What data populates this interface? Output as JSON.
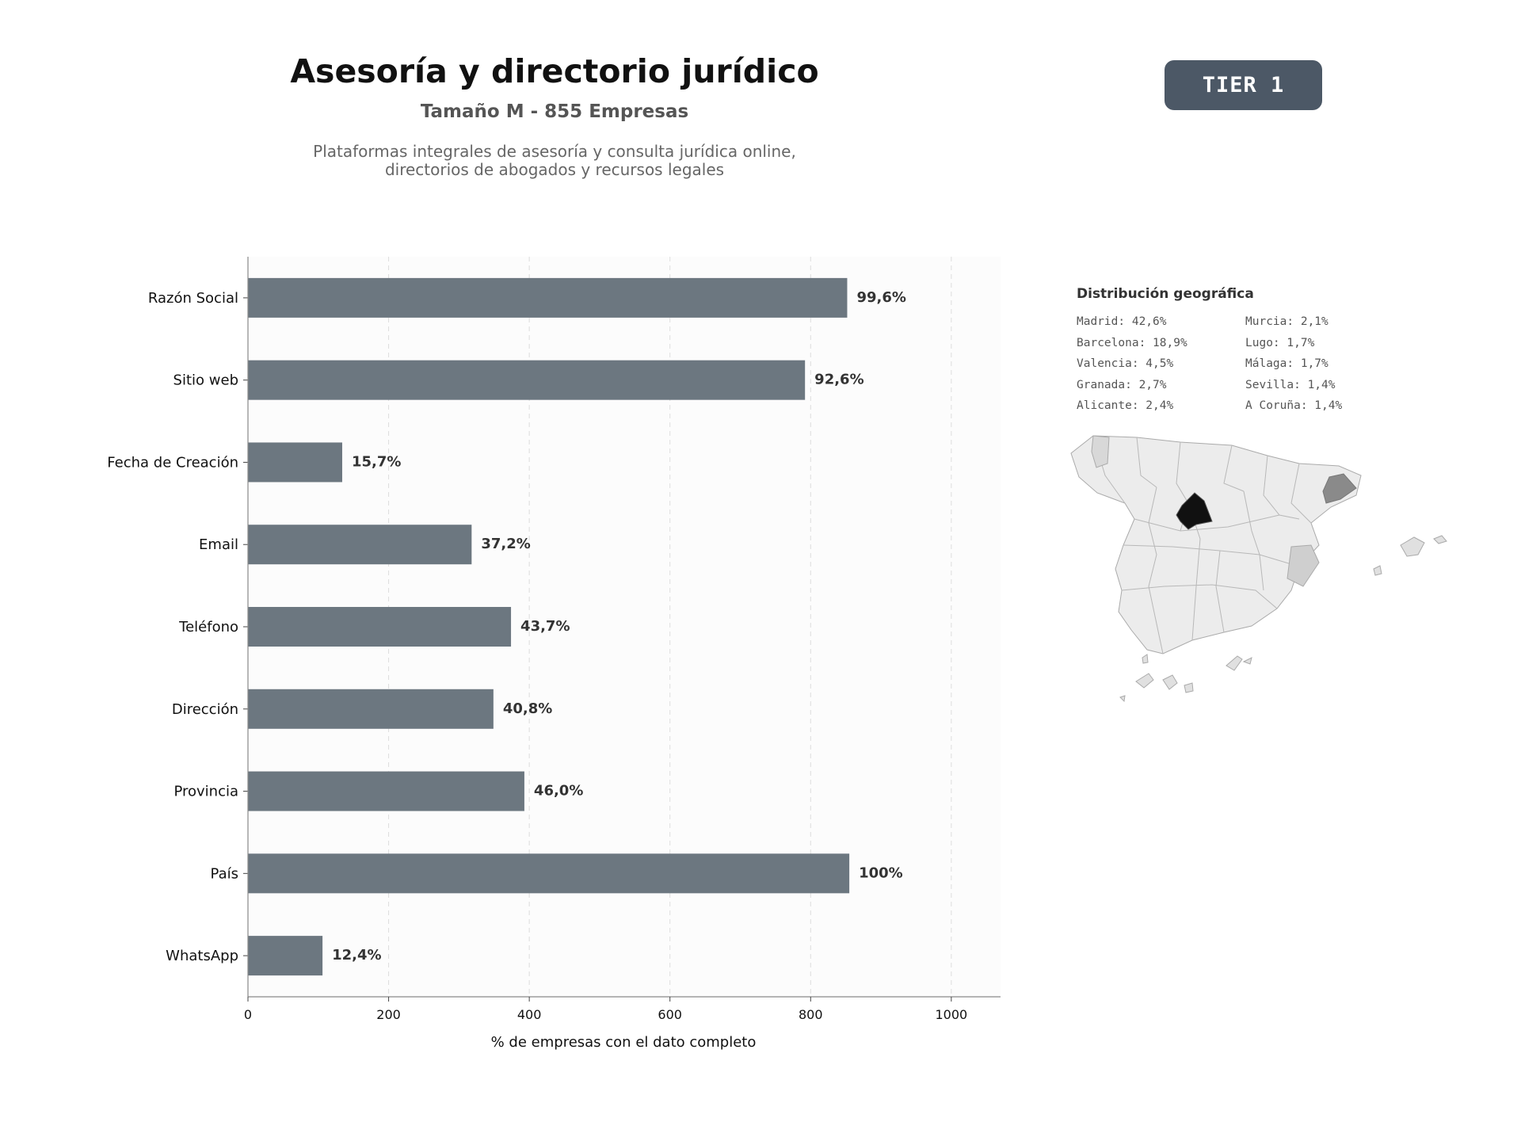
{
  "header": {
    "title": "Asesoría y directorio jurídico",
    "subtitle": "Tamaño M - 855 Empresas",
    "description": "Plataformas integrales de asesoría y consulta jurídica online,\ndirectorios de abogados y recursos legales"
  },
  "badge": {
    "label": "TIER 1"
  },
  "colors": {
    "bar": "#6c7780",
    "badge": "#4c5866",
    "plot_background": "#fcfcfc",
    "grid": "#dddddd"
  },
  "chart_data": {
    "type": "bar",
    "orientation": "horizontal",
    "categories": [
      "Razón Social",
      "Sitio web",
      "Fecha de Creación",
      "Email",
      "Teléfono",
      "Dirección",
      "Provincia",
      "País",
      "WhatsApp"
    ],
    "values": [
      852,
      792,
      134,
      318,
      374,
      349,
      393,
      855,
      106
    ],
    "data_labels": [
      "99,6%",
      "92,6%",
      "15,7%",
      "37,2%",
      "43,7%",
      "40,8%",
      "46,0%",
      "100%",
      "12,4%"
    ],
    "xlabel": "% de empresas con el dato completo",
    "ylabel": "",
    "xlim": [
      0,
      1070
    ],
    "xticks": [
      0,
      200,
      400,
      600,
      800,
      1000
    ],
    "grid": "vertical dashed"
  },
  "geo": {
    "title": "Distribución geográfica",
    "items": [
      "Madrid: 42,6%",
      "Murcia: 2,1%",
      "Barcelona: 18,9%",
      "Lugo: 1,7%",
      "Valencia: 4,5%",
      "Málaga: 1,7%",
      "Granada: 2,7%",
      "Sevilla: 1,4%",
      "Alicante: 2,4%",
      "A Coruña: 1,4%"
    ]
  },
  "map": {
    "name": "spain-province-map",
    "shading": {
      "Madrid": "#111111",
      "Barcelona": "#8a8a8a",
      "Valencia": "#cfcfcf",
      "other": "#e4e4e4"
    }
  }
}
